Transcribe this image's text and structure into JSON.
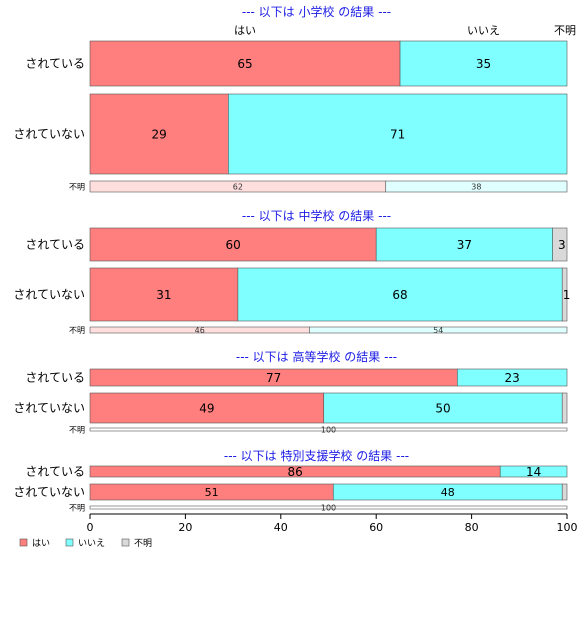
{
  "chart_data": {
    "type": "bar",
    "orientation": "horizontal",
    "stacked": true,
    "percent": true,
    "xlim": [
      0,
      100
    ],
    "xticks": [
      0,
      20,
      40,
      60,
      80,
      100
    ],
    "column_headers": [
      "はい",
      "いいえ",
      "不明"
    ],
    "legend": {
      "placement": "bottom-left",
      "entries": [
        {
          "label": "はい",
          "color": "#FF7F7F"
        },
        {
          "label": "いいえ",
          "color": "#7FFFFF"
        },
        {
          "label": "不明",
          "color": "#D9D9D9"
        }
      ]
    },
    "colors": {
      "yes": "#FF7F7F",
      "no": "#7FFFFF",
      "unknown": "#D9D9D9",
      "yes_light": "#FFDEDE",
      "no_light": "#E0FFFF",
      "title": "#1C1CE6"
    },
    "panels": [
      {
        "title": "--- 以下は 小学校 の結果 ---",
        "rows": [
          {
            "label": "されている",
            "values": [
              65,
              35,
              0
            ],
            "value_labels": [
              "65",
              "35",
              ""
            ]
          },
          {
            "label": "されていない",
            "values": [
              29,
              71,
              0
            ],
            "value_labels": [
              "29",
              "71",
              ""
            ]
          },
          {
            "label": "不明",
            "values": [
              62,
              38,
              0
            ],
            "value_labels": [
              "62",
              "38",
              ""
            ]
          }
        ]
      },
      {
        "title": "--- 以下は 中学校 の結果 ---",
        "rows": [
          {
            "label": "されている",
            "values": [
              60,
              37,
              3
            ],
            "value_labels": [
              "60",
              "37",
              "3"
            ]
          },
          {
            "label": "されていない",
            "values": [
              31,
              68,
              1
            ],
            "value_labels": [
              "31",
              "68",
              "1"
            ]
          },
          {
            "label": "不明",
            "values": [
              46,
              54,
              0
            ],
            "value_labels": [
              "46",
              "54",
              ""
            ]
          }
        ]
      },
      {
        "title": "--- 以下は 高等学校 の結果 ---",
        "rows": [
          {
            "label": "されている",
            "values": [
              77,
              23,
              0
            ],
            "value_labels": [
              "77",
              "23",
              ""
            ]
          },
          {
            "label": "されていない",
            "values": [
              49,
              50,
              1
            ],
            "value_labels": [
              "49",
              "50",
              ""
            ]
          },
          {
            "label": "不明",
            "values": [
              0,
              0,
              100
            ],
            "value_labels": [
              "",
              "",
              "100"
            ]
          }
        ]
      },
      {
        "title": "--- 以下は 特別支援学校 の結果 ---",
        "rows": [
          {
            "label": "されている",
            "values": [
              86,
              14,
              0
            ],
            "value_labels": [
              "86",
              "14",
              ""
            ]
          },
          {
            "label": "されていない",
            "values": [
              51,
              48,
              1
            ],
            "value_labels": [
              "51",
              "48",
              ""
            ]
          },
          {
            "label": "不明",
            "values": [
              0,
              0,
              100
            ],
            "value_labels": [
              "",
              "",
              "100"
            ]
          }
        ]
      }
    ]
  }
}
